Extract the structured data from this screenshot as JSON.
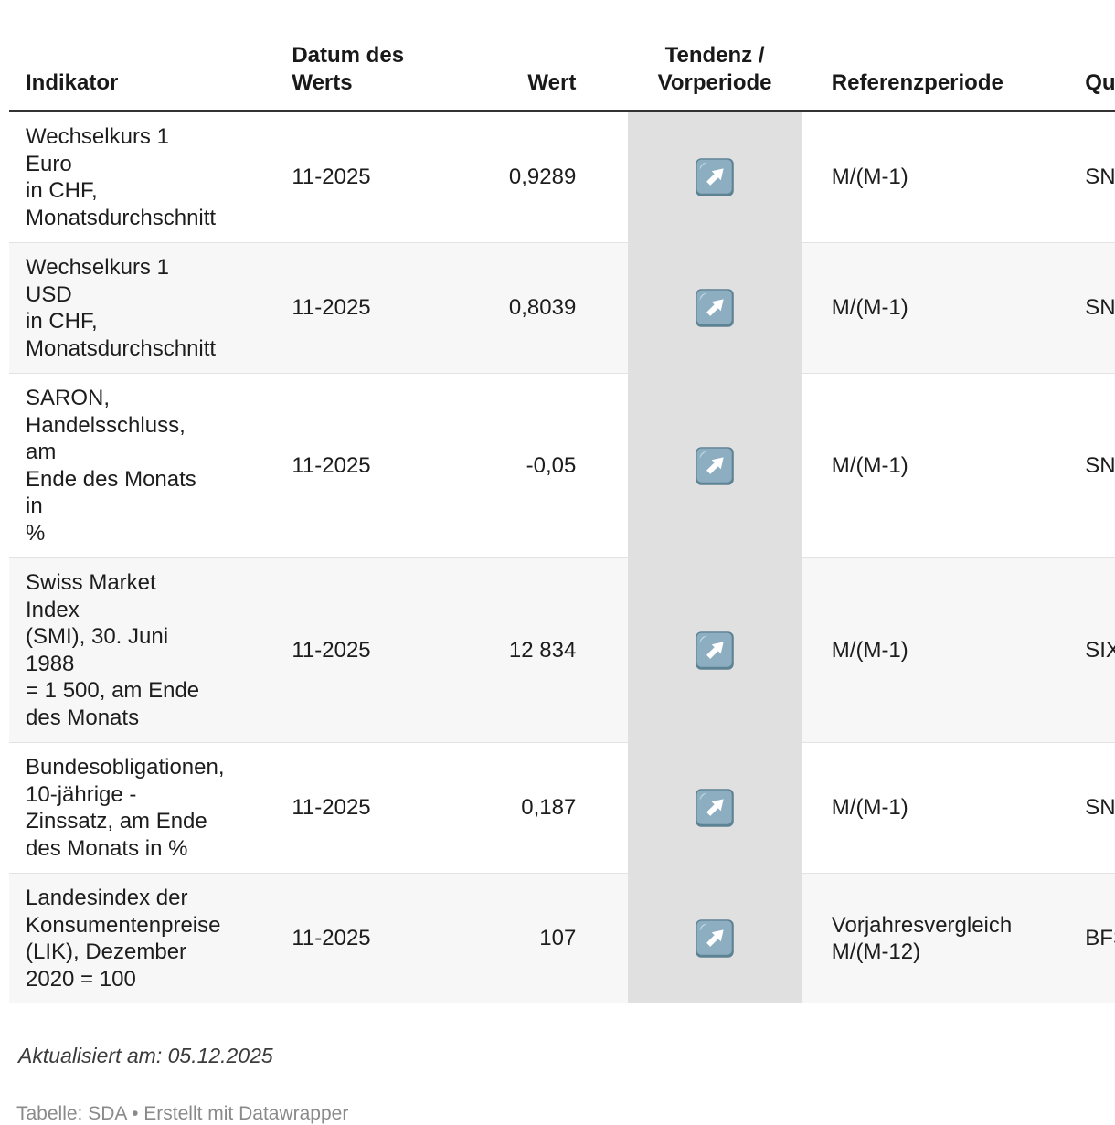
{
  "table": {
    "columns": [
      {
        "id": "indikator",
        "label": "Indikator",
        "align": "left"
      },
      {
        "id": "datum",
        "label": "Datum des\nWerts",
        "align": "left"
      },
      {
        "id": "wert",
        "label": "Wert",
        "align": "right"
      },
      {
        "id": "tendenz",
        "label": "Tendenz /\nVorperiode",
        "align": "center"
      },
      {
        "id": "referenzperiode",
        "label": "Referenzperiode",
        "align": "left"
      },
      {
        "id": "quelle",
        "label": "Quelle",
        "align": "left"
      }
    ],
    "rows": [
      {
        "indicator": "Wechselkurs 1 Euro\nin CHF,\nMonatsdurchschnitt",
        "date": "11-2025",
        "value": "0,9289",
        "trend": "up",
        "reference": "M/(M-1)",
        "source": "SNB",
        "striped": false
      },
      {
        "indicator": "Wechselkurs 1 USD\nin CHF,\nMonatsdurchschnitt",
        "date": "11-2025",
        "value": "0,8039",
        "trend": "up",
        "reference": "M/(M-1)",
        "source": "SNB",
        "striped": true
      },
      {
        "indicator": "SARON,\nHandelsschluss, am\nEnde des Monats in\n%",
        "date": "11-2025",
        "value": "-0,05",
        "trend": "up",
        "reference": "M/(M-1)",
        "source": "SNB",
        "striped": false
      },
      {
        "indicator": "Swiss Market Index\n(SMI), 30. Juni 1988\n= 1 500, am Ende\ndes Monats",
        "date": "11-2025",
        "value": "12 834",
        "trend": "up",
        "reference": "M/(M-1)",
        "source": "SIX",
        "striped": true
      },
      {
        "indicator": "Bundesobligationen,\n10-jährige -\nZinssatz, am Ende\ndes Monats in %",
        "date": "11-2025",
        "value": "0,187",
        "trend": "up",
        "reference": "M/(M-1)",
        "source": "SNB",
        "striped": false
      },
      {
        "indicator": "Landesindex der\nKonsumentenpreise\n(LIK), Dezember\n2020 = 100",
        "date": "11-2025",
        "value": "107",
        "trend": "up",
        "reference": "Vorjahresvergleich\nM/(M-12)",
        "source": "BFS",
        "striped": true
      }
    ]
  },
  "footer": {
    "updated": "Aktualisiert am: 05.12.2025",
    "credit": "Tabelle: SDA • Erstellt mit Datawrapper"
  },
  "colors": {
    "header_rule": "#333333",
    "row_stripe": "#f7f7f7",
    "row_separator": "#e3e3e3",
    "tendenz_column_bg": "#e0e0e0",
    "icon_fill": "#8caec0",
    "icon_edge": "#5d8294",
    "icon_highlight": "#bdd7e0",
    "icon_arrow": "#ffffff"
  },
  "chart_data": {
    "type": "table",
    "title": "",
    "columns": [
      "Indikator",
      "Datum des Werts",
      "Wert",
      "Tendenz / Vorperiode",
      "Referenzperiode",
      "Quelle"
    ],
    "rows": [
      [
        "Wechselkurs 1 Euro in CHF, Monatsdurchschnitt",
        "11-2025",
        "0,9289",
        "up",
        "M/(M-1)",
        "SNB"
      ],
      [
        "Wechselkurs 1 USD in CHF, Monatsdurchschnitt",
        "11-2025",
        "0,8039",
        "up",
        "M/(M-1)",
        "SNB"
      ],
      [
        "SARON, Handelsschluss, am Ende des Monats in %",
        "11-2025",
        "-0,05",
        "up",
        "M/(M-1)",
        "SNB"
      ],
      [
        "Swiss Market Index (SMI), 30. Juni 1988 = 1 500, am Ende des Monats",
        "11-2025",
        "12 834",
        "up",
        "M/(M-1)",
        "SIX"
      ],
      [
        "Bundesobligationen, 10-jährige - Zinssatz, am Ende des Monats in %",
        "11-2025",
        "0,187",
        "up",
        "M/(M-1)",
        "SNB"
      ],
      [
        "Landesindex der Konsumentenpreise (LIK), Dezember 2020 = 100",
        "11-2025",
        "107",
        "up",
        "Vorjahresvergleich M/(M-12)",
        "BFS"
      ]
    ],
    "notes": "Aktualisiert am: 05.12.2025",
    "credit": "Tabelle: SDA • Erstellt mit Datawrapper"
  }
}
